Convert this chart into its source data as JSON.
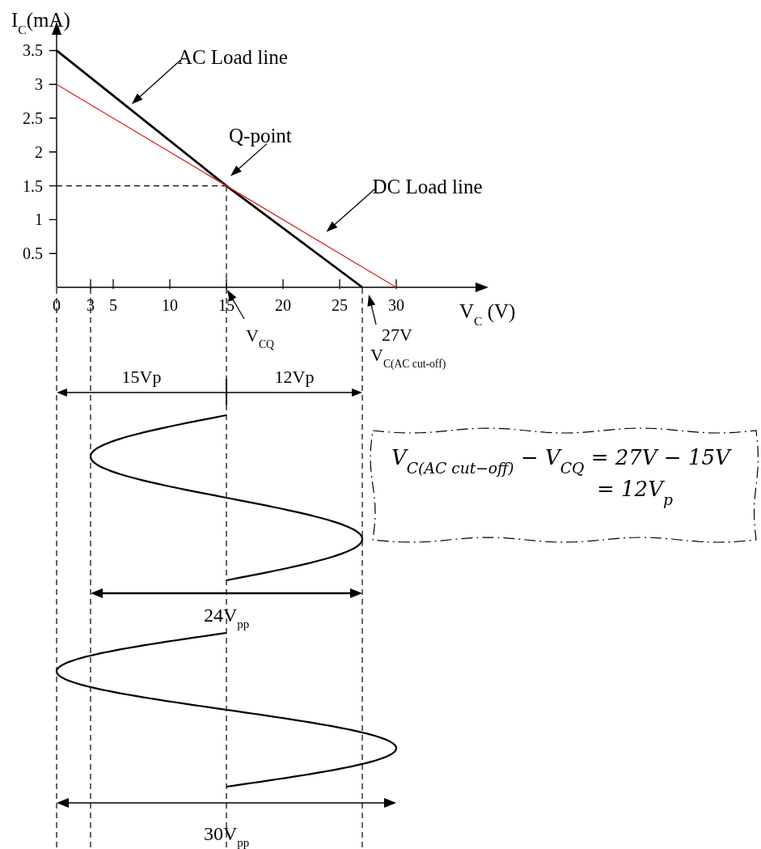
{
  "chart_data": {
    "type": "line",
    "xlabel": "V$_{C}$ (V)",
    "ylabel": "I$_{C}$(mA)",
    "xlim": [
      0,
      38
    ],
    "ylim": [
      0,
      3.9
    ],
    "xticks": [
      0,
      3,
      5,
      10,
      15,
      20,
      25,
      30
    ],
    "yticks": [
      0.5,
      1,
      1.5,
      2,
      2.5,
      3,
      3.5
    ],
    "series": [
      {
        "color": "#000000",
        "x": [
          0,
          15,
          27
        ],
        "values": [
          3.5,
          1.5,
          0
        ]
      },
      {
        "color": "#d42a2a",
        "x": [
          0,
          15,
          30
        ],
        "values": [
          3,
          1.5,
          0
        ]
      }
    ],
    "ref_lines": [
      {
        "axis": "x",
        "value": 15,
        "color": "#000000",
        "line_style": "dashed"
      },
      {
        "axis": "y",
        "value": 1.5,
        "color": "#000000",
        "line_style": "dashed"
      }
    ],
    "annotations": [
      "AC Load line",
      {
        "text": "Q-point",
        "x": 15,
        "y": 1.5
      },
      "DC Load line",
      "V$_{CQ}$",
      {
        "text": "27V",
        "x": 27,
        "y": 0
      },
      "V$_{C(AC cut-off)}$",
      "15Vp",
      "12Vp",
      "24V$_{pp}$",
      "30V$_{pp}$",
      "V$_{C(AC cut−off)}$ − V$_{CQ}$ = 27V − 15V",
      "= 12V$_{p}$"
    ]
  }
}
